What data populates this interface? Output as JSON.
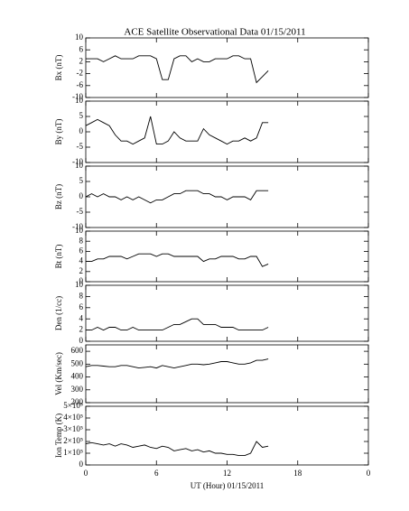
{
  "title": "ACE Satellite Observational Data   01/15/2011",
  "chart_data": [
    {
      "type": "line",
      "ylabel": "Bx (nT)",
      "xlim": [
        0,
        24
      ],
      "xticks": [
        0,
        6,
        12,
        18,
        24
      ],
      "ylim": [
        -10,
        10
      ],
      "yticks": [
        10,
        6,
        2,
        -2,
        -6,
        -10
      ],
      "x": [
        0,
        0.5,
        1,
        1.5,
        2,
        2.5,
        3,
        3.5,
        4,
        4.5,
        5,
        5.5,
        6,
        6.5,
        7,
        7.5,
        8,
        8.5,
        9,
        9.5,
        10,
        10.5,
        11,
        11.5,
        12,
        12.5,
        13,
        13.5,
        14,
        14.5,
        15,
        15.5
      ],
      "series": [
        {
          "color": "#000000",
          "values": [
            3,
            3,
            3,
            2,
            3,
            4,
            3,
            3,
            3,
            4,
            4,
            4,
            3,
            -4,
            -4,
            3,
            4,
            4,
            2,
            3,
            2,
            2,
            3,
            3,
            3,
            4,
            4,
            3,
            3,
            -5,
            -3,
            -1
          ]
        }
      ]
    },
    {
      "type": "line",
      "ylabel": "By (nT)",
      "xlim": [
        0,
        24
      ],
      "xticks": [
        0,
        6,
        12,
        18,
        24
      ],
      "ylim": [
        -10,
        10
      ],
      "yticks": [
        10,
        5,
        0,
        -5,
        -10
      ],
      "x": [
        0,
        0.5,
        1,
        1.5,
        2,
        2.5,
        3,
        3.5,
        4,
        4.5,
        5,
        5.5,
        6,
        6.5,
        7,
        7.5,
        8,
        8.5,
        9,
        9.5,
        10,
        10.5,
        11,
        11.5,
        12,
        12.5,
        13,
        13.5,
        14,
        14.5,
        15,
        15.5
      ],
      "series": [
        {
          "color": "#000000",
          "values": [
            2,
            3,
            4,
            3,
            2,
            -1,
            -3,
            -3,
            -4,
            -3,
            -2,
            5,
            -4,
            -4,
            -3,
            0,
            -2,
            -3,
            -3,
            -3,
            1,
            -1,
            -2,
            -3,
            -4,
            -3,
            -3,
            -2,
            -3,
            -2,
            3,
            3
          ]
        }
      ]
    },
    {
      "type": "line",
      "ylabel": "Bz (nT)",
      "xlim": [
        0,
        24
      ],
      "xticks": [
        0,
        6,
        12,
        18,
        24
      ],
      "ylim": [
        -10,
        10
      ],
      "yticks": [
        10,
        5,
        0,
        -5,
        -10
      ],
      "x": [
        0,
        0.5,
        1,
        1.5,
        2,
        2.5,
        3,
        3.5,
        4,
        4.5,
        5,
        5.5,
        6,
        6.5,
        7,
        7.5,
        8,
        8.5,
        9,
        9.5,
        10,
        10.5,
        11,
        11.5,
        12,
        12.5,
        13,
        13.5,
        14,
        14.5,
        15,
        15.5
      ],
      "series": [
        {
          "color": "#000000",
          "values": [
            0,
            1,
            0,
            1,
            0,
            0,
            -1,
            0,
            -1,
            0,
            -1,
            -2,
            -1,
            -1,
            0,
            1,
            1,
            2,
            2,
            2,
            1,
            1,
            0,
            0,
            -1,
            0,
            0,
            0,
            -1,
            2,
            2,
            2
          ]
        }
      ]
    },
    {
      "type": "line",
      "ylabel": "Bt (nT)",
      "xlim": [
        0,
        24
      ],
      "xticks": [
        0,
        6,
        12,
        18,
        24
      ],
      "ylim": [
        0,
        10
      ],
      "yticks": [
        10,
        8,
        6,
        4,
        2,
        0
      ],
      "x": [
        0,
        0.5,
        1,
        1.5,
        2,
        2.5,
        3,
        3.5,
        4,
        4.5,
        5,
        5.5,
        6,
        6.5,
        7,
        7.5,
        8,
        8.5,
        9,
        9.5,
        10,
        10.5,
        11,
        11.5,
        12,
        12.5,
        13,
        13.5,
        14,
        14.5,
        15,
        15.5
      ],
      "series": [
        {
          "color": "#000000",
          "values": [
            4,
            4,
            4.5,
            4.5,
            5,
            5,
            5,
            4.5,
            5,
            5.5,
            5.5,
            5.5,
            5,
            5.5,
            5.5,
            5,
            5,
            5,
            5,
            5,
            4,
            4.5,
            4.5,
            5,
            5,
            5,
            4.5,
            4.5,
            5,
            5,
            3,
            3.5
          ]
        }
      ]
    },
    {
      "type": "line",
      "ylabel": "Den (1/cc)",
      "xlim": [
        0,
        24
      ],
      "xticks": [
        0,
        6,
        12,
        18,
        24
      ],
      "ylim": [
        0,
        10
      ],
      "yticks": [
        10,
        8,
        6,
        4,
        2,
        0
      ],
      "x": [
        0,
        0.5,
        1,
        1.5,
        2,
        2.5,
        3,
        3.5,
        4,
        4.5,
        5,
        5.5,
        6,
        6.5,
        7,
        7.5,
        8,
        8.5,
        9,
        9.5,
        10,
        10.5,
        11,
        11.5,
        12,
        12.5,
        13,
        13.5,
        14,
        14.5,
        15,
        15.5
      ],
      "series": [
        {
          "color": "#000000",
          "values": [
            2,
            2,
            2.5,
            2,
            2.5,
            2.5,
            2,
            2,
            2.5,
            2,
            2,
            2,
            2,
            2,
            2.5,
            3,
            3,
            3.5,
            4,
            4,
            3,
            3,
            3,
            2.5,
            2.5,
            2.5,
            2,
            2,
            2,
            2,
            2,
            2.5
          ]
        }
      ]
    },
    {
      "type": "line",
      "ylabel": "Vel (Km/sec)",
      "xlim": [
        0,
        24
      ],
      "xticks": [
        0,
        6,
        12,
        18,
        24
      ],
      "ylim": [
        200,
        650
      ],
      "yticks": [
        600,
        500,
        400,
        300,
        200
      ],
      "x": [
        0,
        0.5,
        1,
        1.5,
        2,
        2.5,
        3,
        3.5,
        4,
        4.5,
        5,
        5.5,
        6,
        6.5,
        7,
        7.5,
        8,
        8.5,
        9,
        9.5,
        10,
        10.5,
        11,
        11.5,
        12,
        12.5,
        13,
        13.5,
        14,
        14.5,
        15,
        15.5
      ],
      "series": [
        {
          "color": "#000000",
          "values": [
            480,
            490,
            490,
            485,
            480,
            480,
            490,
            490,
            480,
            470,
            475,
            480,
            470,
            490,
            480,
            470,
            480,
            490,
            500,
            500,
            495,
            500,
            510,
            520,
            520,
            510,
            500,
            500,
            510,
            530,
            530,
            540
          ]
        }
      ]
    },
    {
      "type": "line",
      "ylabel": "Ion Temp (K)",
      "xlabel": "UT (Hour)  01/15/2011",
      "xlim": [
        0,
        24
      ],
      "xticks": [
        0,
        6,
        12,
        18,
        {
          "value": 24,
          "label": "0"
        }
      ],
      "ylim": [
        0,
        500000
      ],
      "yticks": [
        {
          "value": 500000,
          "label": "5×10⁵"
        },
        {
          "value": 400000,
          "label": "4×10⁵"
        },
        {
          "value": 300000,
          "label": "3×10⁵"
        },
        {
          "value": 200000,
          "label": "2×10⁵"
        },
        {
          "value": 100000,
          "label": "1×10⁵"
        },
        0
      ],
      "x": [
        0,
        0.5,
        1,
        1.5,
        2,
        2.5,
        3,
        3.5,
        4,
        4.5,
        5,
        5.5,
        6,
        6.5,
        7,
        7.5,
        8,
        8.5,
        9,
        9.5,
        10,
        10.5,
        11,
        11.5,
        12,
        12.5,
        13,
        13.5,
        14,
        14.5,
        15,
        15.5
      ],
      "series": [
        {
          "color": "#000000",
          "values": [
            180000,
            190000,
            180000,
            170000,
            180000,
            160000,
            180000,
            170000,
            150000,
            160000,
            170000,
            150000,
            140000,
            160000,
            150000,
            120000,
            130000,
            140000,
            120000,
            130000,
            110000,
            120000,
            100000,
            100000,
            90000,
            90000,
            80000,
            80000,
            100000,
            200000,
            150000,
            160000
          ]
        }
      ]
    }
  ]
}
